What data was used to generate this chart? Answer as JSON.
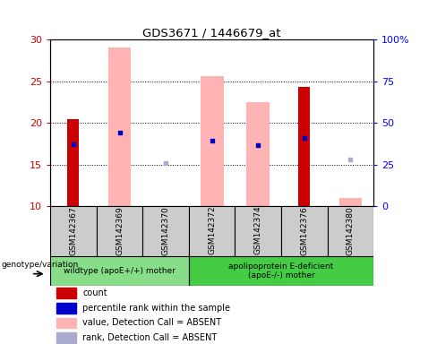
{
  "title": "GDS3671 / 1446679_at",
  "samples": [
    "GSM142367",
    "GSM142369",
    "GSM142370",
    "GSM142372",
    "GSM142374",
    "GSM142376",
    "GSM142380"
  ],
  "ylim_left": [
    10,
    30
  ],
  "ylim_right": [
    0,
    100
  ],
  "yticks_left": [
    10,
    15,
    20,
    25,
    30
  ],
  "yticks_right": [
    0,
    25,
    50,
    75,
    100
  ],
  "red_bars": {
    "GSM142367": [
      10,
      20.5
    ],
    "GSM142376": [
      10,
      24.3
    ]
  },
  "blue_squares": {
    "GSM142367": 17.4,
    "GSM142369": 18.8,
    "GSM142372": 17.9,
    "GSM142374": 17.3,
    "GSM142376": 18.2
  },
  "pink_bars": {
    "GSM142369": [
      10,
      29.0
    ],
    "GSM142372": [
      10,
      25.6
    ],
    "GSM142374": [
      10,
      22.5
    ],
    "GSM142380": [
      10,
      11.0
    ]
  },
  "light_blue_squares": {
    "GSM142370": 15.2,
    "GSM142374": 17.3,
    "GSM142380": 15.6
  },
  "group1_samples": [
    "GSM142367",
    "GSM142369",
    "GSM142370"
  ],
  "group2_samples": [
    "GSM142372",
    "GSM142374",
    "GSM142376",
    "GSM142380"
  ],
  "group1_label": "wildtype (apoE+/+) mother",
  "group2_label": "apolipoprotein E-deficient\n(apoE-/-) mother",
  "genotype_label": "genotype/variation",
  "red_color": "#cc0000",
  "blue_color": "#0000cc",
  "pink_color": "#ffb3b3",
  "light_blue_color": "#aaaacc",
  "legend_labels": [
    "count",
    "percentile rank within the sample",
    "value, Detection Call = ABSENT",
    "rank, Detection Call = ABSENT"
  ],
  "legend_colors": [
    "#cc0000",
    "#0000cc",
    "#ffb3b3",
    "#aaaacc"
  ]
}
